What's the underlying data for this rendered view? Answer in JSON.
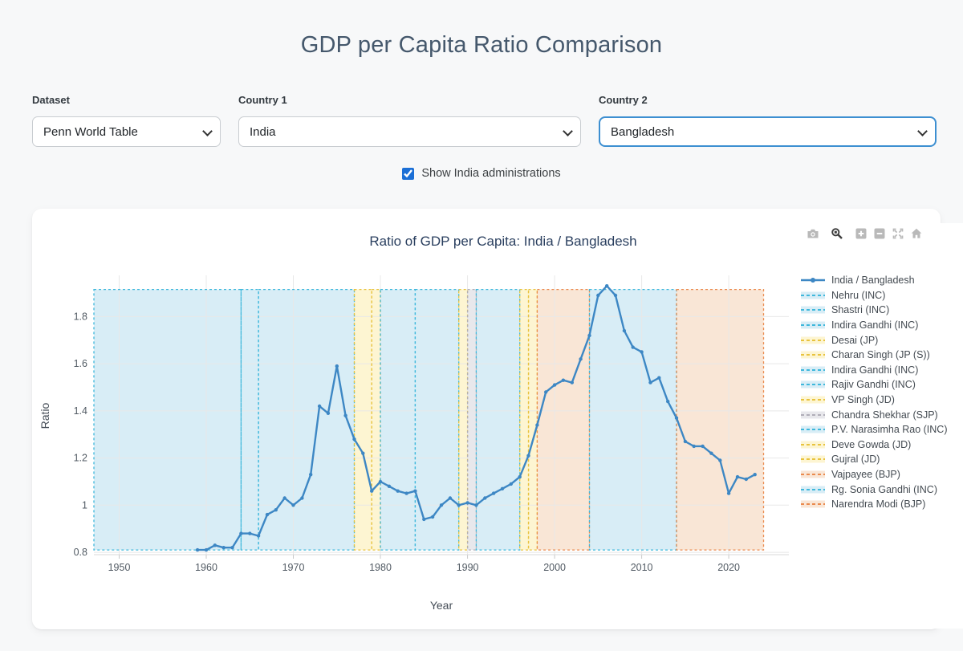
{
  "header": {
    "title": "GDP per Capita Ratio Comparison"
  },
  "controls": {
    "dataset": {
      "label": "Dataset",
      "value": "Penn World Table"
    },
    "country1": {
      "label": "Country 1",
      "value": "India"
    },
    "country2": {
      "label": "Country 2",
      "value": "Bangladesh",
      "focused": true
    },
    "administrations_checkbox": {
      "label": "Show India administrations",
      "checked": true
    }
  },
  "chart": {
    "modebar": {
      "icons": [
        "camera-icon",
        "zoom-icon",
        "zoom-in-icon",
        "zoom-out-icon",
        "autoscale-icon",
        "home-icon"
      ],
      "active": "zoom-icon"
    }
  },
  "chart_data": {
    "type": "line",
    "title": "Ratio of GDP per Capita: India / Bangladesh",
    "xlabel": "Year",
    "ylabel": "Ratio",
    "xlim": [
      1947.1,
      2026.9
    ],
    "ylim": [
      0.79,
      1.975
    ],
    "x_ticks": [
      1950,
      1960,
      1970,
      1980,
      1990,
      2000,
      2010,
      2020
    ],
    "y_ticks": [
      0.8,
      1,
      1.2,
      1.4,
      1.6,
      1.8
    ],
    "y_tick_labels": [
      "0.8",
      "1",
      "1.2",
      "1.4",
      "1.6",
      "1.8"
    ],
    "grid": true,
    "legend_position": "right",
    "series": [
      {
        "name": "India / Bangladesh",
        "color": "#3d87c4",
        "x": [
          1959,
          1960,
          1961,
          1962,
          1963,
          1964,
          1965,
          1966,
          1967,
          1968,
          1969,
          1970,
          1971,
          1972,
          1973,
          1974,
          1975,
          1976,
          1977,
          1978,
          1979,
          1980,
          1981,
          1982,
          1983,
          1984,
          1985,
          1986,
          1987,
          1988,
          1989,
          1990,
          1991,
          1992,
          1993,
          1994,
          1995,
          1996,
          1997,
          1998,
          1999,
          2000,
          2001,
          2002,
          2003,
          2004,
          2005,
          2006,
          2007,
          2008,
          2009,
          2010,
          2011,
          2012,
          2013,
          2014,
          2015,
          2016,
          2017,
          2018,
          2019,
          2020,
          2021,
          2022,
          2023
        ],
        "y": [
          0.81,
          0.81,
          0.83,
          0.82,
          0.82,
          0.88,
          0.88,
          0.87,
          0.96,
          0.98,
          1.03,
          1.0,
          1.03,
          1.13,
          1.42,
          1.39,
          1.59,
          1.38,
          1.28,
          1.22,
          1.06,
          1.1,
          1.08,
          1.06,
          1.05,
          1.06,
          0.94,
          0.95,
          1.0,
          1.03,
          1.0,
          1.01,
          1.0,
          1.03,
          1.05,
          1.07,
          1.09,
          1.12,
          1.21,
          1.34,
          1.48,
          1.51,
          1.53,
          1.52,
          1.62,
          1.72,
          1.89,
          1.93,
          1.89,
          1.74,
          1.67,
          1.65,
          1.52,
          1.54,
          1.44,
          1.37,
          1.27,
          1.25,
          1.25,
          1.22,
          1.19,
          1.05,
          1.12,
          1.11,
          1.13
        ]
      }
    ],
    "region_y_span": [
      0.81,
      1.915
    ],
    "regions": [
      {
        "label": "Nehru (INC)",
        "start": 1947,
        "end": 1964,
        "fill": "#d8edf6",
        "line": "#3fb8dc"
      },
      {
        "label": "Shastri (INC)",
        "start": 1964,
        "end": 1966,
        "fill": "#d8edf6",
        "line": "#3fb8dc"
      },
      {
        "label": "Indira Gandhi (INC)",
        "start": 1966,
        "end": 1977,
        "fill": "#d8edf6",
        "line": "#3fb8dc"
      },
      {
        "label": "Desai (JP)",
        "start": 1977,
        "end": 1979,
        "fill": "#fdf5d2",
        "line": "#e8c33f"
      },
      {
        "label": "Charan Singh (JP (S))",
        "start": 1979,
        "end": 1980,
        "fill": "#fdf5d2",
        "line": "#e8c33f"
      },
      {
        "label": "Indira Gandhi (INC)",
        "start": 1980,
        "end": 1984,
        "fill": "#d8edf6",
        "line": "#3fb8dc"
      },
      {
        "label": "Rajiv Gandhi (INC)",
        "start": 1984,
        "end": 1989,
        "fill": "#d8edf6",
        "line": "#3fb8dc"
      },
      {
        "label": "VP Singh (JD)",
        "start": 1989,
        "end": 1990,
        "fill": "#fdf5d2",
        "line": "#e8c33f"
      },
      {
        "label": "Chandra Shekhar (SJP)",
        "start": 1990,
        "end": 1991,
        "fill": "#e8e8ec",
        "line": "#b0aeb8"
      },
      {
        "label": "P.V. Narasimha Rao (INC)",
        "start": 1991,
        "end": 1996,
        "fill": "#d8edf6",
        "line": "#3fb8dc"
      },
      {
        "label": "Deve Gowda (JD)",
        "start": 1996,
        "end": 1997,
        "fill": "#fdf5d2",
        "line": "#e8c33f"
      },
      {
        "label": "Gujral (JD)",
        "start": 1997,
        "end": 1998,
        "fill": "#fdf5d2",
        "line": "#e8c33f"
      },
      {
        "label": "Vajpayee (BJP)",
        "start": 1998,
        "end": 2004,
        "fill": "#f9e6d6",
        "line": "#ea8a4e"
      },
      {
        "label": "Rg. Sonia Gandhi (INC)",
        "start": 2004,
        "end": 2014,
        "fill": "#d8edf6",
        "line": "#3fb8dc"
      },
      {
        "label": "Narendra Modi (BJP)",
        "start": 2014,
        "end": 2024,
        "fill": "#f9e6d6",
        "line": "#ea8a4e"
      }
    ]
  }
}
